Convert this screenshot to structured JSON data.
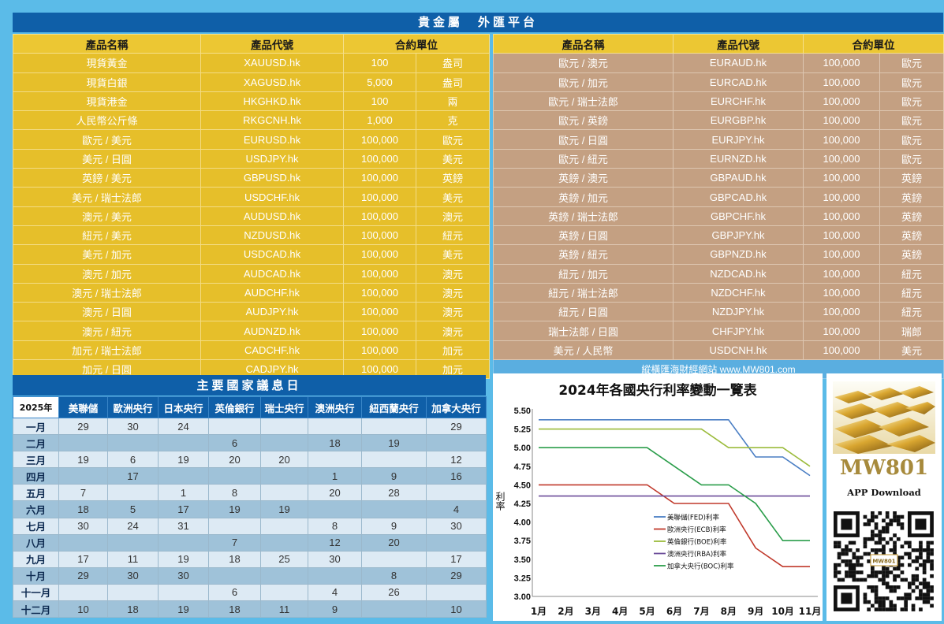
{
  "header": {
    "title": "貴金屬　外匯平台"
  },
  "product_left": {
    "columns": [
      "產品名稱",
      "產品代號",
      "合約單位"
    ],
    "rows": [
      [
        "現貨黃金",
        "XAUUSD.hk",
        "100",
        "盎司"
      ],
      [
        "現貨白銀",
        "XAGUSD.hk",
        "5,000",
        "盎司"
      ],
      [
        "現貨港金",
        "HKGHKD.hk",
        "100",
        "兩"
      ],
      [
        "人民幣公斤條",
        "RKGCNH.hk",
        "1,000",
        "克"
      ],
      [
        "歐元 / 美元",
        "EURUSD.hk",
        "100,000",
        "歐元"
      ],
      [
        "美元 / 日圓",
        "USDJPY.hk",
        "100,000",
        "美元"
      ],
      [
        "英鎊 / 美元",
        "GBPUSD.hk",
        "100,000",
        "英鎊"
      ],
      [
        "美元 / 瑞士法郎",
        "USDCHF.hk",
        "100,000",
        "美元"
      ],
      [
        "澳元 / 美元",
        "AUDUSD.hk",
        "100,000",
        "澳元"
      ],
      [
        "紐元 / 美元",
        "NZDUSD.hk",
        "100,000",
        "紐元"
      ],
      [
        "美元 / 加元",
        "USDCAD.hk",
        "100,000",
        "美元"
      ],
      [
        "澳元 / 加元",
        "AUDCAD.hk",
        "100,000",
        "澳元"
      ],
      [
        "澳元 / 瑞士法郎",
        "AUDCHF.hk",
        "100,000",
        "澳元"
      ],
      [
        "澳元 / 日圓",
        "AUDJPY.hk",
        "100,000",
        "澳元"
      ],
      [
        "澳元 / 紐元",
        "AUDNZD.hk",
        "100,000",
        "澳元"
      ],
      [
        "加元 / 瑞士法郎",
        "CADCHF.hk",
        "100,000",
        "加元"
      ],
      [
        "加元 / 日圓",
        "CADJPY.hk",
        "100,000",
        "加元"
      ]
    ]
  },
  "product_right": {
    "columns": [
      "產品名稱",
      "產品代號",
      "合約單位"
    ],
    "rows": [
      [
        "歐元 / 澳元",
        "EURAUD.hk",
        "100,000",
        "歐元"
      ],
      [
        "歐元 / 加元",
        "EURCAD.hk",
        "100,000",
        "歐元"
      ],
      [
        "歐元 / 瑞士法郎",
        "EURCHF.hk",
        "100,000",
        "歐元"
      ],
      [
        "歐元 / 英鎊",
        "EURGBP.hk",
        "100,000",
        "歐元"
      ],
      [
        "歐元 / 日圓",
        "EURJPY.hk",
        "100,000",
        "歐元"
      ],
      [
        "歐元 / 紐元",
        "EURNZD.hk",
        "100,000",
        "歐元"
      ],
      [
        "英鎊 / 澳元",
        "GBPAUD.hk",
        "100,000",
        "英鎊"
      ],
      [
        "英鎊 / 加元",
        "GBPCAD.hk",
        "100,000",
        "英鎊"
      ],
      [
        "英鎊 / 瑞士法郎",
        "GBPCHF.hk",
        "100,000",
        "英鎊"
      ],
      [
        "英鎊 / 日圓",
        "GBPJPY.hk",
        "100,000",
        "英鎊"
      ],
      [
        "英鎊 / 紐元",
        "GBPNZD.hk",
        "100,000",
        "英鎊"
      ],
      [
        "紐元 / 加元",
        "NZDCAD.hk",
        "100,000",
        "紐元"
      ],
      [
        "紐元 / 瑞士法郎",
        "NZDCHF.hk",
        "100,000",
        "紐元"
      ],
      [
        "紐元 / 日圓",
        "NZDJPY.hk",
        "100,000",
        "紐元"
      ],
      [
        "瑞士法郎 / 日圓",
        "CHFJPY.hk",
        "100,000",
        "瑞郎"
      ],
      [
        "美元 / 人民幣",
        "USDCNH.hk",
        "100,000",
        "美元"
      ]
    ],
    "footer": "縱橫匯海財經網站 www.MW801.com"
  },
  "rate_schedule": {
    "title": "主要國家議息日",
    "year_label": "2025年",
    "banks": [
      "美聯儲",
      "歐洲央行",
      "日本央行",
      "英倫銀行",
      "瑞士央行",
      "澳洲央行",
      "紐西蘭央行",
      "加拿大央行"
    ],
    "rows": [
      {
        "month": "一月",
        "cells": [
          "29",
          "30",
          "24",
          "",
          "",
          "",
          "",
          "29"
        ]
      },
      {
        "month": "二月",
        "cells": [
          "",
          "",
          "",
          "6",
          "",
          "18",
          "19",
          ""
        ]
      },
      {
        "month": "三月",
        "cells": [
          "19",
          "6",
          "19",
          "20",
          "20",
          "",
          "",
          "12"
        ]
      },
      {
        "month": "四月",
        "cells": [
          "",
          "17",
          "",
          "",
          "",
          "1",
          "9",
          "16"
        ]
      },
      {
        "month": "五月",
        "cells": [
          "7",
          "",
          "1",
          "8",
          "",
          "20",
          "28",
          ""
        ]
      },
      {
        "month": "六月",
        "cells": [
          "18",
          "5",
          "17",
          "19",
          "19",
          "",
          "",
          "4"
        ]
      },
      {
        "month": "七月",
        "cells": [
          "30",
          "24",
          "31",
          "",
          "",
          "8",
          "9",
          "30"
        ]
      },
      {
        "month": "八月",
        "cells": [
          "",
          "",
          "",
          "7",
          "",
          "12",
          "20",
          ""
        ]
      },
      {
        "month": "九月",
        "cells": [
          "17",
          "11",
          "19",
          "18",
          "25",
          "30",
          "",
          "17"
        ]
      },
      {
        "month": "十月",
        "cells": [
          "29",
          "30",
          "30",
          "",
          "",
          "",
          "8",
          "29"
        ]
      },
      {
        "month": "十一月",
        "cells": [
          "",
          "",
          "",
          "6",
          "",
          "4",
          "26",
          ""
        ]
      },
      {
        "month": "十二月",
        "cells": [
          "10",
          "18",
          "19",
          "18",
          "11",
          "9",
          "",
          "10"
        ]
      }
    ]
  },
  "chart_data": {
    "type": "line",
    "title": "2024年各國央行利率變動一覽表",
    "xlabel": "",
    "ylabel": "利率",
    "categories": [
      "1月",
      "2月",
      "3月",
      "4月",
      "5月",
      "6月",
      "7月",
      "8月",
      "9月",
      "10月",
      "11月"
    ],
    "ylim": [
      3.0,
      5.5
    ],
    "yticks": [
      "5.50",
      "5.25",
      "5.00",
      "4.75",
      "4.50",
      "4.25",
      "4.00",
      "3.75",
      "3.50",
      "3.25",
      "3.00"
    ],
    "grid": false,
    "legend": "center-right",
    "series": [
      {
        "name": "美聯儲(FED)利率",
        "color": "#4a7ec4",
        "values": [
          5.375,
          5.375,
          5.375,
          5.375,
          5.375,
          5.375,
          5.375,
          5.375,
          4.875,
          4.875,
          4.625
        ]
      },
      {
        "name": "歐洲央行(ECB)利率",
        "color": "#c0392b",
        "values": [
          4.5,
          4.5,
          4.5,
          4.5,
          4.5,
          4.25,
          4.25,
          4.25,
          3.65,
          3.4,
          3.4
        ]
      },
      {
        "name": "英倫銀行(BOE)利率",
        "color": "#9bbb3b",
        "values": [
          5.25,
          5.25,
          5.25,
          5.25,
          5.25,
          5.25,
          5.25,
          5.0,
          5.0,
          5.0,
          4.75
        ]
      },
      {
        "name": "澳洲央行(RBA)利率",
        "color": "#6b4c9a",
        "values": [
          4.35,
          4.35,
          4.35,
          4.35,
          4.35,
          4.35,
          4.35,
          4.35,
          4.35,
          4.35,
          4.35
        ]
      },
      {
        "name": "加拿大央行(BOC)利率",
        "color": "#2a9d4a",
        "values": [
          5.0,
          5.0,
          5.0,
          5.0,
          5.0,
          4.75,
          4.5,
          4.5,
          4.25,
          3.75,
          3.75
        ]
      }
    ]
  },
  "app": {
    "brand": "MW801",
    "download_label": "APP Download",
    "qr_label": "MW801",
    "brand_color": "#a78a3c"
  }
}
